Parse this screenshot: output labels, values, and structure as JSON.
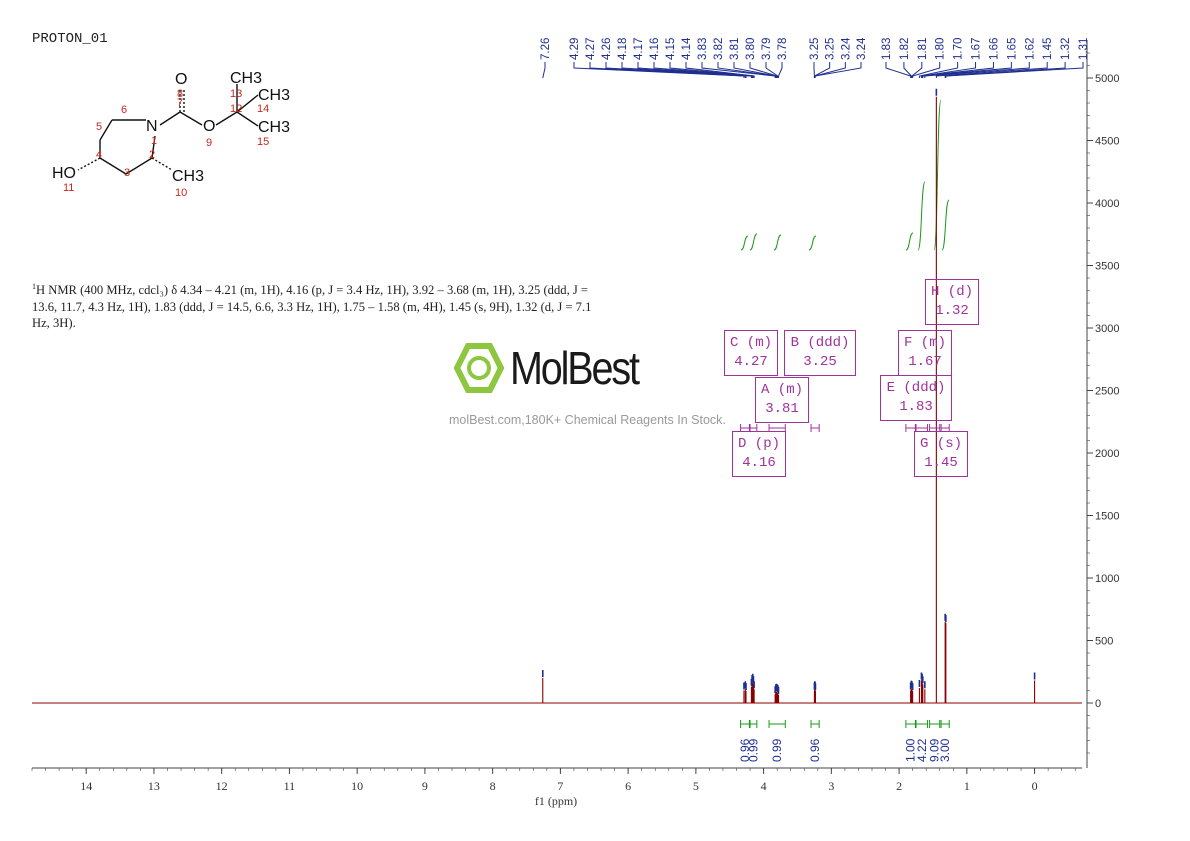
{
  "experiment_title": "PROTON_01",
  "nmr_description": {
    "sup": "1",
    "text": "H NMR (400 MHz, cdcl₃) δ 4.34 – 4.21 (m, 1H), 4.16 (p, J = 3.4 Hz, 1H), 3.92 – 3.68 (m, 1H), 3.25 (ddd, J = 13.6, 11.7, 4.3 Hz, 1H), 1.83 (ddd, J = 14.5, 6.6, 3.3 Hz, 1H), 1.75 – 1.58 (m, 4H), 1.45 (s, 9H), 1.32 (d, J = 7.1 Hz, 3H)."
  },
  "watermark": {
    "brand": "MolBest",
    "tagline": "molBest.com,180K+ Chemical Reagents In Stock."
  },
  "molecule": {
    "atoms": [
      "O",
      "N",
      "O",
      "HO",
      "CH3",
      "CH3",
      "CH3"
    ],
    "subscript_labels": [
      "CH",
      "3"
    ],
    "numbers": [
      "1",
      "2",
      "3",
      "4",
      "5",
      "6",
      "7",
      "8",
      "9",
      "10",
      "11",
      "12",
      "13",
      "14",
      "15"
    ]
  },
  "multiplets": [
    {
      "label": "A (m)",
      "shift": "3.81"
    },
    {
      "label": "B (ddd)",
      "shift": "3.25"
    },
    {
      "label": "C (m)",
      "shift": "4.27"
    },
    {
      "label": "D (p)",
      "shift": "4.16"
    },
    {
      "label": "E (ddd)",
      "shift": "1.83"
    },
    {
      "label": "F (m)",
      "shift": "1.67"
    },
    {
      "label": "G (s)",
      "shift": "1.45"
    },
    {
      "label": "H (d)",
      "shift": "1.32"
    }
  ],
  "chart_data": {
    "type": "line",
    "xlabel": "f1 (ppm)",
    "ylabel": "",
    "xlim": [
      14.8,
      -0.7
    ],
    "ylim": [
      -500,
      5200
    ],
    "x_ticks": [
      14,
      13,
      12,
      11,
      10,
      9,
      8,
      7,
      6,
      5,
      4,
      3,
      2,
      1,
      0
    ],
    "y_ticks": [
      0,
      500,
      1000,
      1500,
      2000,
      2500,
      3000,
      3500,
      4000,
      4500,
      5000
    ],
    "peak_labels": [
      "7.26",
      "4.29",
      "4.27",
      "4.26",
      "4.18",
      "4.17",
      "4.16",
      "4.15",
      "4.14",
      "3.83",
      "3.82",
      "3.81",
      "3.80",
      "3.79",
      "3.78",
      "3.25",
      "3.25",
      "3.24",
      "3.24",
      "1.83",
      "1.82",
      "1.81",
      "1.80",
      "1.70",
      "1.67",
      "1.66",
      "1.65",
      "1.62",
      "1.45",
      "1.32",
      "1.31"
    ],
    "peaks": [
      {
        "x": 7.26,
        "y": 200
      },
      {
        "x": 4.29,
        "y": 100
      },
      {
        "x": 4.27,
        "y": 110
      },
      {
        "x": 4.26,
        "y": 95
      },
      {
        "x": 4.18,
        "y": 130
      },
      {
        "x": 4.17,
        "y": 160
      },
      {
        "x": 4.16,
        "y": 170
      },
      {
        "x": 4.15,
        "y": 150
      },
      {
        "x": 4.14,
        "y": 110
      },
      {
        "x": 3.83,
        "y": 70
      },
      {
        "x": 3.82,
        "y": 85
      },
      {
        "x": 3.81,
        "y": 90
      },
      {
        "x": 3.8,
        "y": 85
      },
      {
        "x": 3.79,
        "y": 80
      },
      {
        "x": 3.78,
        "y": 65
      },
      {
        "x": 3.25,
        "y": 100
      },
      {
        "x": 3.245,
        "y": 110
      },
      {
        "x": 3.24,
        "y": 105
      },
      {
        "x": 3.235,
        "y": 95
      },
      {
        "x": 1.83,
        "y": 100
      },
      {
        "x": 1.82,
        "y": 115
      },
      {
        "x": 1.81,
        "y": 110
      },
      {
        "x": 1.8,
        "y": 95
      },
      {
        "x": 1.7,
        "y": 120
      },
      {
        "x": 1.67,
        "y": 180
      },
      {
        "x": 1.66,
        "y": 170
      },
      {
        "x": 1.65,
        "y": 150
      },
      {
        "x": 1.62,
        "y": 110
      },
      {
        "x": 1.45,
        "y": 4850
      },
      {
        "x": 1.32,
        "y": 650
      },
      {
        "x": 1.31,
        "y": 640
      },
      {
        "x": 0.0,
        "y": 180
      }
    ],
    "integrations": [
      {
        "from": 4.34,
        "to": 4.21,
        "value": "0.96"
      },
      {
        "from": 4.2,
        "to": 4.1,
        "value": "0.99"
      },
      {
        "from": 3.92,
        "to": 3.68,
        "value": "0.99"
      },
      {
        "from": 3.3,
        "to": 3.18,
        "value": "0.96"
      },
      {
        "from": 1.9,
        "to": 1.76,
        "value": "1.00"
      },
      {
        "from": 1.75,
        "to": 1.58,
        "value": "4.22"
      },
      {
        "from": 1.55,
        "to": 1.4,
        "value": "9.09"
      },
      {
        "from": 1.38,
        "to": 1.26,
        "value": "3.00"
      }
    ],
    "colors": {
      "spectrum": "#8b0000",
      "peak_marker": "#1f2f8f",
      "integral": "#1a9a1a",
      "label_box": "#a0329b",
      "axis": "#444444"
    }
  }
}
